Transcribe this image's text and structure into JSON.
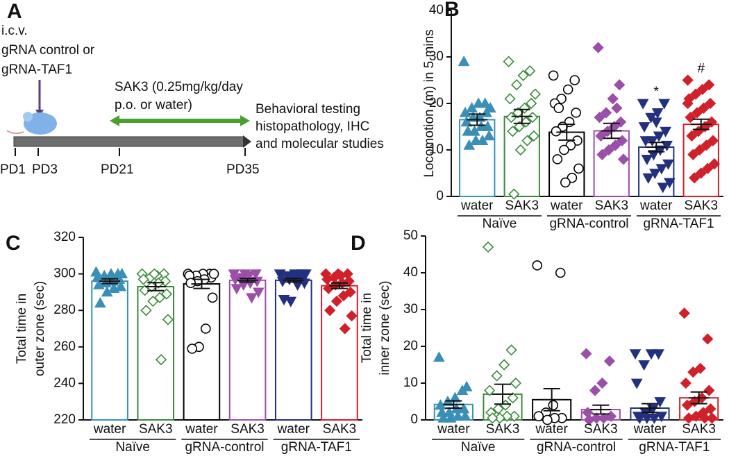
{
  "timeline": {
    "panel": "A",
    "injection": [
      "i.c.v.",
      "gRNA control or",
      "gRNA-TAF1"
    ],
    "treatment": [
      "SAK3 (0.25mg/kg/day",
      "p.o. or water)"
    ],
    "outcome": [
      "Behavioral testing",
      "histopathology, IHC",
      "and molecular studies"
    ],
    "days": [
      "PD1",
      "PD3",
      "PD21",
      "PD35"
    ]
  },
  "chart_data": [
    {
      "type": "bar",
      "panel": "B",
      "ylabel": [
        "Locomotion (m) in 5 mins"
      ],
      "categories": [
        "water",
        "SAK3",
        "water",
        "SAK3",
        "water",
        "SAK3"
      ],
      "groups": [
        "Naïve",
        "gRNA-control",
        "gRNA-TAF1"
      ],
      "values": [
        16.5,
        17.2,
        13.8,
        14.1,
        10.6,
        15.5
      ],
      "errors": [
        1.2,
        1.5,
        1.7,
        1.6,
        1.0,
        1.1
      ],
      "colors": [
        "#3a8fb7",
        "#3a8a3a",
        "#000000",
        "#9b4fa8",
        "#23307f",
        "#d0202a"
      ],
      "markers": [
        "triangle",
        "diamond",
        "circle",
        "diamond",
        "triangle-down",
        "diamond"
      ],
      "filled": [
        true,
        false,
        false,
        true,
        true,
        true
      ],
      "points": [
        [
          29,
          20,
          20,
          19,
          18,
          18,
          17,
          17,
          16,
          15,
          15,
          14,
          14,
          13,
          12,
          12,
          11,
          19
        ],
        [
          29,
          27,
          26,
          24,
          21,
          20,
          19,
          18,
          17,
          17,
          16,
          15,
          14,
          13,
          12,
          10,
          0.5,
          22
        ],
        [
          26,
          25,
          23,
          21,
          20,
          18,
          16,
          15,
          14,
          12,
          11,
          10,
          8,
          6,
          4,
          3,
          19
        ],
        [
          32,
          24,
          21,
          18,
          17,
          16,
          15,
          14,
          13,
          12,
          11,
          10,
          9,
          8,
          19
        ],
        [
          20,
          20,
          18,
          17,
          15,
          14,
          13,
          12,
          12,
          11,
          10,
          9,
          8,
          7,
          6,
          5,
          4,
          3,
          2,
          16
        ],
        [
          25,
          24,
          23,
          22,
          21,
          20,
          19,
          18,
          17,
          16,
          15,
          14,
          13,
          12,
          11,
          10,
          9,
          7,
          6,
          5,
          4,
          20
        ]
      ],
      "value_annotations": [
        null,
        null,
        null,
        null,
        "*",
        "#"
      ],
      "ylim": [
        0,
        40
      ],
      "yticks": [
        0,
        10,
        20,
        30,
        40
      ]
    },
    {
      "type": "bar",
      "panel": "C",
      "ylabel": [
        "Total time in",
        "outer zone (sec)"
      ],
      "categories": [
        "water",
        "SAK3",
        "water",
        "SAK3",
        "water",
        "SAK3"
      ],
      "groups": [
        "Naïve",
        "gRNA-control",
        "gRNA-TAF1"
      ],
      "values": [
        296,
        293,
        294.5,
        296.5,
        296.5,
        293.5
      ],
      "errors": [
        1.3,
        2.2,
        2.5,
        1.0,
        1.0,
        1.5
      ],
      "colors": [
        "#3a8fb7",
        "#3a8a3a",
        "#000000",
        "#9b4fa8",
        "#23307f",
        "#d0202a"
      ],
      "markers": [
        "triangle",
        "diamond",
        "circle",
        "triangle-down",
        "triangle-down",
        "diamond"
      ],
      "filled": [
        true,
        false,
        false,
        true,
        true,
        true
      ],
      "points": [
        [
          301,
          300,
          300,
          299,
          298,
          297,
          296,
          295,
          294,
          293,
          292,
          290,
          284,
          300
        ],
        [
          300,
          300,
          299,
          298,
          297,
          296,
          295,
          293,
          291,
          289,
          287,
          285,
          280,
          275,
          253,
          300
        ],
        [
          300,
          300,
          300,
          299,
          299,
          298,
          297,
          296,
          295,
          287,
          270,
          260,
          259,
          300
        ],
        [
          300,
          300,
          299,
          298,
          297,
          296,
          295,
          294,
          292,
          290,
          287,
          300
        ],
        [
          300,
          300,
          300,
          299,
          299,
          298,
          298,
          297,
          296,
          295,
          294,
          285,
          286,
          300
        ],
        [
          300,
          300,
          299,
          298,
          297,
          296,
          295,
          294,
          292,
          290,
          288,
          285,
          280,
          277,
          270,
          300
        ]
      ],
      "ylim": [
        220,
        320
      ],
      "yticks": [
        220,
        240,
        260,
        280,
        300,
        320
      ]
    },
    {
      "type": "bar",
      "panel": "D",
      "ylabel": [
        "Total time in",
        "inner zone (sec)"
      ],
      "categories": [
        "water",
        "SAK3",
        "water",
        "SAK3",
        "water",
        "SAK3"
      ],
      "groups": [
        "Naïve",
        "gRNA-control",
        "gRNA-TAF1"
      ],
      "values": [
        4.2,
        7,
        5.5,
        2.8,
        3.2,
        6
      ],
      "errors": [
        1.0,
        2.7,
        3.0,
        1.2,
        1.2,
        1.6
      ],
      "colors": [
        "#3a8fb7",
        "#3a8a3a",
        "#000000",
        "#9b4fa8",
        "#23307f",
        "#d0202a"
      ],
      "markers": [
        "triangle",
        "diamond",
        "circle",
        "diamond",
        "triangle-down",
        "diamond"
      ],
      "filled": [
        true,
        false,
        false,
        true,
        true,
        true
      ],
      "points": [
        [
          17,
          8,
          6,
          5,
          4,
          3,
          3,
          2,
          2,
          1,
          1,
          0.5,
          0.5,
          9
        ],
        [
          47,
          19,
          15,
          12,
          8,
          6,
          4,
          3,
          2,
          1,
          1,
          0.5,
          0.5,
          10
        ],
        [
          42,
          40,
          4,
          2,
          1,
          0.5,
          0.5,
          0
        ],
        [
          18,
          16,
          10,
          8,
          2,
          1,
          0.5,
          0.5,
          0
        ],
        [
          18,
          18,
          18,
          15,
          10,
          5,
          3,
          2,
          1,
          1,
          0.5,
          0.5,
          0.5
        ],
        [
          29,
          22,
          14,
          13,
          10,
          8,
          6,
          5,
          4,
          3,
          2,
          1,
          0.5,
          0.5,
          0.5
        ]
      ],
      "ylim": [
        0,
        50
      ],
      "yticks": [
        0,
        10,
        20,
        30,
        40,
        50
      ]
    }
  ]
}
